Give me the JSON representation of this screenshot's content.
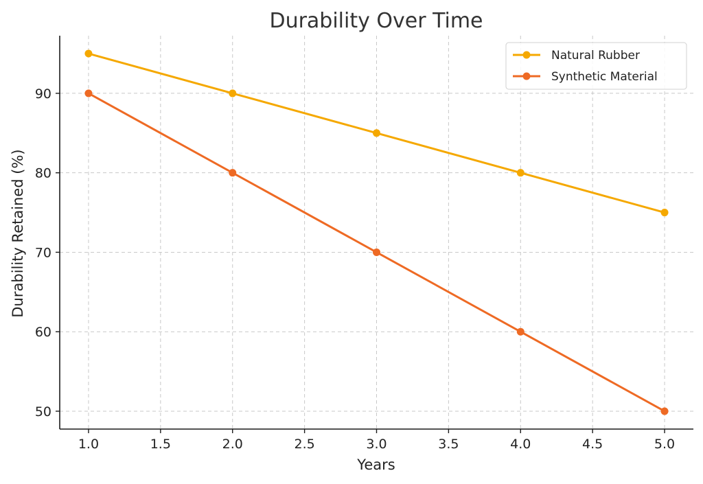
{
  "chart_data": {
    "type": "line",
    "title": "Durability Over Time",
    "xlabel": "Years",
    "ylabel": "Durability Retained (%)",
    "x": [
      1,
      2,
      3,
      4,
      5
    ],
    "xlim": [
      0.8,
      5.2
    ],
    "ylim": [
      47.75,
      97.25
    ],
    "xticks": [
      1.0,
      1.5,
      2.0,
      2.5,
      3.0,
      3.5,
      4.0,
      4.5,
      5.0
    ],
    "xtick_labels": [
      "1.0",
      "1.5",
      "2.0",
      "2.5",
      "3.0",
      "3.5",
      "4.0",
      "4.5",
      "5.0"
    ],
    "yticks": [
      50,
      60,
      70,
      80,
      90
    ],
    "ytick_labels": [
      "50",
      "60",
      "70",
      "80",
      "90"
    ],
    "grid": true,
    "legend_position": "top-right",
    "series": [
      {
        "name": "Natural Rubber",
        "color": "#F5A800",
        "values": [
          95,
          90,
          85,
          80,
          75
        ]
      },
      {
        "name": "Synthetic Material",
        "color": "#EE6A24",
        "values": [
          90,
          80,
          70,
          60,
          50
        ]
      }
    ]
  }
}
